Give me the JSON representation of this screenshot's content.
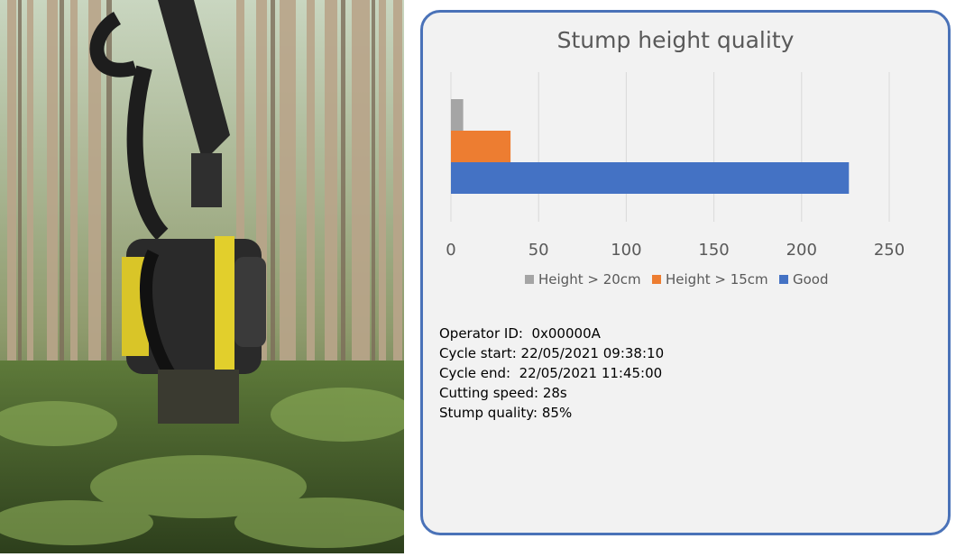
{
  "photo": {
    "description_icon": "forest-harvester-photo"
  },
  "chart_data": {
    "type": "bar",
    "orientation": "horizontal",
    "title": "Stump height quality",
    "categories": [
      ""
    ],
    "series": [
      {
        "name": "Height > 20cm",
        "values": [
          7
        ],
        "color": "#a5a5a5"
      },
      {
        "name": "Height > 15cm",
        "values": [
          34
        ],
        "color": "#ed7d31"
      },
      {
        "name": "Good",
        "values": [
          227
        ],
        "color": "#4472c4"
      }
    ],
    "xlim": [
      0,
      250
    ],
    "xticks": [
      "0",
      "50",
      "100",
      "150",
      "200",
      "250"
    ],
    "grid": true,
    "legend": "bottom"
  },
  "info": {
    "operator": "Operator ID:  0x00000A",
    "cycle_start": "Cycle start: 22/05/2021 09:38:10",
    "cycle_end": "Cycle end:  22/05/2021 11:45:00",
    "cutting_speed": "Cutting speed: 28s",
    "stump_quality": "Stump quality: 85%"
  }
}
